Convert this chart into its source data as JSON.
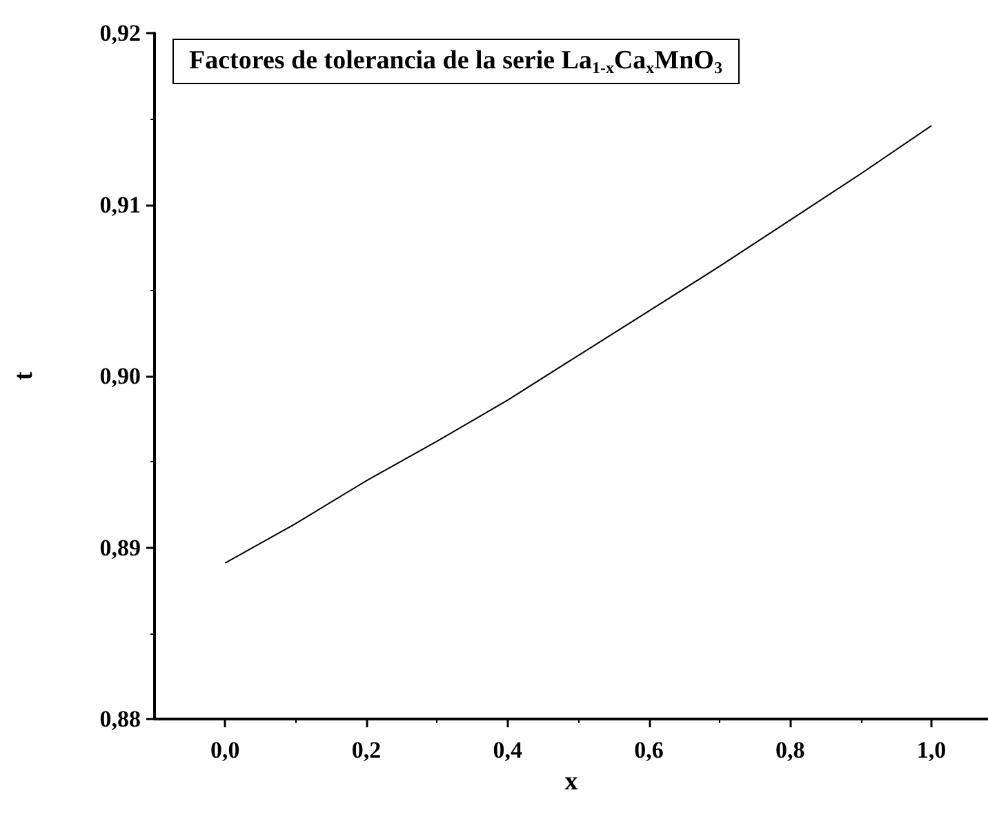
{
  "chart_data": {
    "type": "line",
    "title": "Factores de tolerancia de la serie La$_{1-x}$Ca$_{x}$MnO$_{3}$",
    "xlabel": "x",
    "ylabel": "t",
    "x": [
      0,
      0.1,
      0.2,
      0.3,
      0.4,
      0.5,
      0.6,
      0.7,
      0.8,
      0.9,
      1.0
    ],
    "series": [
      {
        "color": "#000000",
        "values": [
          0.8891,
          0.8914,
          0.8939,
          0.8962,
          0.8986,
          0.9012,
          0.9038,
          0.9064,
          0.9091,
          0.9118,
          0.9146
        ]
      }
    ],
    "xlim": [
      -0.1,
      1.08
    ],
    "ylim": [
      0.88,
      0.92
    ],
    "xticks": [
      {
        "value": 0,
        "label": "0,0"
      },
      {
        "value": 0.2,
        "label": "0,2"
      },
      {
        "value": 0.4,
        "label": "0,4"
      },
      {
        "value": 0.6,
        "label": "0,6"
      },
      {
        "value": 0.8,
        "label": "0,8"
      },
      {
        "value": 1.0,
        "label": "1,0"
      }
    ],
    "yticks": [
      {
        "value": 0.88,
        "label": "0,88"
      },
      {
        "value": 0.89,
        "label": "0,89"
      },
      {
        "value": 0.9,
        "label": "0,90"
      },
      {
        "value": 0.91,
        "label": "0,91"
      },
      {
        "value": 0.92,
        "label": "0,92"
      }
    ],
    "grid": false,
    "marker": "none",
    "line_style": "solid"
  }
}
